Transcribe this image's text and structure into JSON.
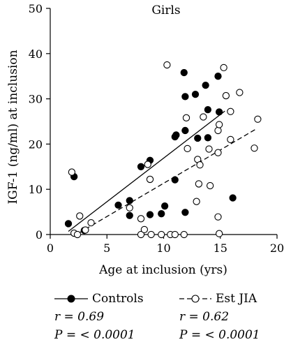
{
  "chart_data": {
    "type": "scatter",
    "title": "Girls",
    "xlabel": "Age at inclusion (yrs)",
    "ylabel": "IGF-1 (ng/ml) at inclusion",
    "xlim": [
      0,
      20
    ],
    "ylim": [
      0,
      50
    ],
    "xticks": [
      "0",
      "5",
      "10",
      "15",
      "20"
    ],
    "yticks": [
      "0",
      "10",
      "20",
      "30",
      "40",
      "50"
    ],
    "grid": false,
    "series": [
      {
        "name": "Controls",
        "marker": "filled-circle",
        "line": "solid",
        "color": "#000000",
        "points": [
          [
            1.6,
            2.4
          ],
          [
            2.1,
            12.8
          ],
          [
            3.0,
            0.9
          ],
          [
            6.0,
            6.5
          ],
          [
            7.0,
            7.5
          ],
          [
            7.0,
            4.2
          ],
          [
            8.0,
            15.0
          ],
          [
            8.8,
            16.4
          ],
          [
            8.8,
            4.4
          ],
          [
            9.8,
            4.6
          ],
          [
            10.1,
            6.3
          ],
          [
            11.0,
            21.6
          ],
          [
            11.1,
            22.0
          ],
          [
            11.0,
            12.1
          ],
          [
            11.8,
            35.8
          ],
          [
            11.9,
            30.5
          ],
          [
            11.9,
            23.0
          ],
          [
            11.9,
            4.9
          ],
          [
            12.8,
            31.0
          ],
          [
            13.0,
            21.3
          ],
          [
            13.7,
            33.0
          ],
          [
            13.9,
            27.6
          ],
          [
            13.9,
            21.4
          ],
          [
            14.8,
            35.0
          ],
          [
            14.9,
            27.1
          ],
          [
            16.1,
            8.1
          ]
        ],
        "fit": [
          [
            1.6,
            0.7
          ],
          [
            15.4,
            27.3
          ]
        ],
        "r": "r = 0.69",
        "p": "P = < 0.0001"
      },
      {
        "name": "Est JIA",
        "marker": "open-circle",
        "line": "dashed",
        "color": "#000000",
        "points": [
          [
            1.9,
            13.8
          ],
          [
            2.1,
            0.3
          ],
          [
            2.4,
            0.0
          ],
          [
            2.6,
            4.1
          ],
          [
            3.1,
            1.0
          ],
          [
            3.6,
            2.6
          ],
          [
            7.0,
            5.9
          ],
          [
            8.0,
            0.0
          ],
          [
            8.0,
            3.5
          ],
          [
            8.3,
            1.1
          ],
          [
            8.6,
            15.5
          ],
          [
            8.8,
            12.2
          ],
          [
            8.9,
            0.0
          ],
          [
            9.8,
            0.0
          ],
          [
            10.3,
            37.5
          ],
          [
            10.6,
            0.0
          ],
          [
            11.0,
            0.0
          ],
          [
            11.8,
            0.0
          ],
          [
            12.0,
            25.8
          ],
          [
            12.1,
            19.0
          ],
          [
            12.9,
            7.3
          ],
          [
            13.0,
            16.6
          ],
          [
            13.1,
            11.2
          ],
          [
            13.2,
            15.4
          ],
          [
            13.5,
            26.0
          ],
          [
            14.0,
            18.9
          ],
          [
            14.1,
            10.8
          ],
          [
            14.8,
            23.0
          ],
          [
            14.9,
            0.2
          ],
          [
            14.8,
            3.9
          ],
          [
            14.8,
            18.1
          ],
          [
            14.9,
            24.3
          ],
          [
            15.3,
            36.9
          ],
          [
            15.5,
            30.7
          ],
          [
            15.9,
            27.2
          ],
          [
            15.9,
            21.0
          ],
          [
            16.7,
            31.4
          ],
          [
            18.0,
            19.1
          ],
          [
            18.3,
            25.5
          ]
        ],
        "fit": [
          [
            2.5,
            0.3
          ],
          [
            18.2,
            23.4
          ]
        ],
        "r": "r = 0.62",
        "p": "P = < 0.0001"
      }
    ]
  }
}
